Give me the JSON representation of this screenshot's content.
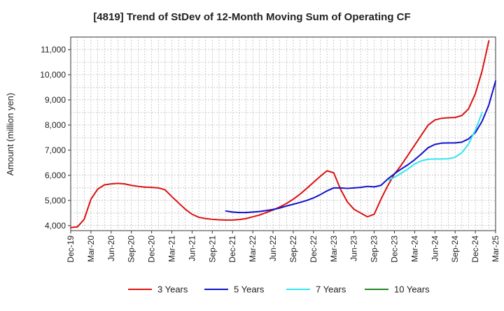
{
  "chart_data": {
    "type": "line",
    "title": "[4819]  Trend of StDev of 12-Month Moving Sum of Operating CF",
    "ylabel": "Amount (million yen)",
    "xlabel": "",
    "ylim": [
      3800,
      11500
    ],
    "y_ticks": [
      4000,
      5000,
      6000,
      7000,
      8000,
      9000,
      10000,
      11000
    ],
    "y_tick_labels": [
      "4,000",
      "5,000",
      "6,000",
      "7,000",
      "8,000",
      "9,000",
      "10,000",
      "11,000"
    ],
    "x_range": [
      "2019-12",
      "2025-03"
    ],
    "x_ticks": [
      "2019-12",
      "2020-03",
      "2020-06",
      "2020-09",
      "2020-12",
      "2021-03",
      "2021-06",
      "2021-09",
      "2021-12",
      "2022-03",
      "2022-06",
      "2022-09",
      "2022-12",
      "2023-03",
      "2023-06",
      "2023-09",
      "2023-12",
      "2024-03",
      "2024-06",
      "2024-09",
      "2024-12",
      "2025-03"
    ],
    "x_tick_labels": [
      "Dec-19",
      "Mar-20",
      "Jun-20",
      "Sep-20",
      "Dec-20",
      "Mar-21",
      "Jun-21",
      "Sep-21",
      "Dec-21",
      "Mar-22",
      "Jun-22",
      "Sep-22",
      "Dec-22",
      "Mar-23",
      "Jun-23",
      "Sep-23",
      "Dec-23",
      "Mar-24",
      "Jun-24",
      "Sep-24",
      "Dec-24",
      "Mar-25"
    ],
    "grid": true,
    "legend_position": "bottom",
    "series": [
      {
        "name": "3 Years",
        "color": "#dd1111",
        "start": "2019-12",
        "values": [
          3920,
          3950,
          4250,
          5050,
          5450,
          5620,
          5660,
          5680,
          5660,
          5600,
          5560,
          5530,
          5520,
          5500,
          5420,
          5150,
          4900,
          4650,
          4450,
          4330,
          4280,
          4250,
          4230,
          4220,
          4220,
          4240,
          4280,
          4350,
          4420,
          4520,
          4620,
          4740,
          4880,
          5050,
          5250,
          5480,
          5720,
          5960,
          6180,
          6100,
          5450,
          4950,
          4650,
          4500,
          4350,
          4450,
          5050,
          5580,
          6050,
          6400,
          6800,
          7200,
          7600,
          8000,
          8200,
          8270,
          8290,
          8300,
          8380,
          8650,
          9250,
          10150,
          11350
        ]
      },
      {
        "name": "5 Years",
        "color": "#1111cc",
        "start": "2021-11",
        "values": [
          4580,
          4540,
          4520,
          4520,
          4540,
          4560,
          4600,
          4640,
          4700,
          4780,
          4850,
          4920,
          5000,
          5100,
          5230,
          5380,
          5500,
          5500,
          5480,
          5500,
          5520,
          5560,
          5540,
          5600,
          5850,
          6060,
          6250,
          6420,
          6620,
          6850,
          7100,
          7230,
          7280,
          7290,
          7290,
          7320,
          7450,
          7700,
          8150,
          8800,
          9750
        ]
      },
      {
        "name": "7 Years",
        "color": "#33e5ee",
        "start": "2023-11",
        "values": [
          5800,
          5920,
          6080,
          6250,
          6450,
          6580,
          6640,
          6650,
          6650,
          6660,
          6720,
          6900,
          7250,
          7800,
          8500
        ]
      },
      {
        "name": "10 Years",
        "color": "#228822",
        "start": "2019-12",
        "values": []
      }
    ]
  }
}
